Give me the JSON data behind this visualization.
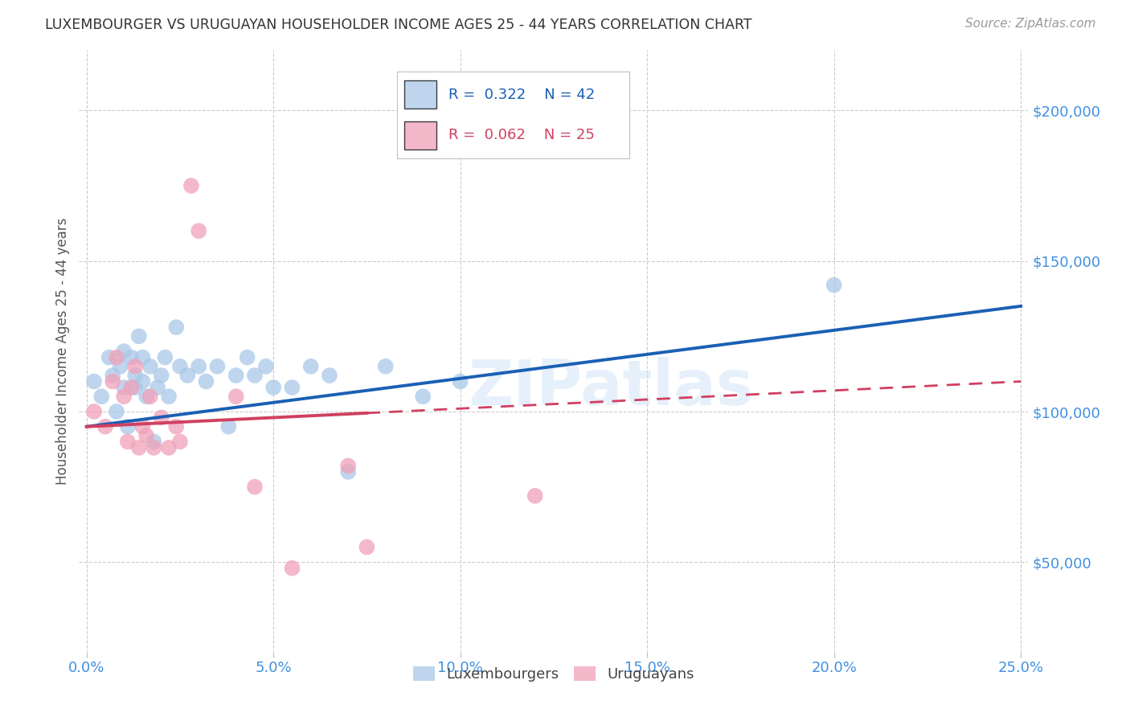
{
  "title": "LUXEMBOURGER VS URUGUAYAN HOUSEHOLDER INCOME AGES 25 - 44 YEARS CORRELATION CHART",
  "source": "Source: ZipAtlas.com",
  "ylabel": "Householder Income Ages 25 - 44 years",
  "xlabel_ticks": [
    "0.0%",
    "5.0%",
    "10.0%",
    "15.0%",
    "20.0%",
    "25.0%"
  ],
  "xlabel_vals": [
    0.0,
    0.05,
    0.1,
    0.15,
    0.2,
    0.25
  ],
  "ytick_labels": [
    "$50,000",
    "$100,000",
    "$150,000",
    "$200,000"
  ],
  "ytick_vals": [
    50000,
    100000,
    150000,
    200000
  ],
  "ylim": [
    20000,
    220000
  ],
  "xlim": [
    -0.002,
    0.252
  ],
  "blue_r": 0.322,
  "blue_n": 42,
  "pink_r": 0.062,
  "pink_n": 25,
  "blue_color": "#a8c8e8",
  "pink_color": "#f0a0b8",
  "blue_line_color": "#1a5fb4",
  "pink_line_color": "#d04060",
  "bg_color": "#ffffff",
  "grid_color": "#cccccc",
  "axis_label_color": "#4090e0",
  "title_color": "#333333",
  "watermark": "ZIPatlas",
  "blue_points_x": [
    0.002,
    0.004,
    0.006,
    0.007,
    0.008,
    0.009,
    0.01,
    0.01,
    0.011,
    0.012,
    0.013,
    0.013,
    0.014,
    0.015,
    0.015,
    0.016,
    0.017,
    0.018,
    0.019,
    0.02,
    0.021,
    0.022,
    0.024,
    0.025,
    0.027,
    0.03,
    0.032,
    0.035,
    0.038,
    0.04,
    0.043,
    0.045,
    0.048,
    0.05,
    0.055,
    0.06,
    0.065,
    0.07,
    0.08,
    0.09,
    0.1,
    0.2
  ],
  "blue_points_y": [
    110000,
    105000,
    118000,
    112000,
    100000,
    115000,
    108000,
    120000,
    95000,
    118000,
    112000,
    108000,
    125000,
    110000,
    118000,
    105000,
    115000,
    90000,
    108000,
    112000,
    118000,
    105000,
    128000,
    115000,
    112000,
    115000,
    110000,
    115000,
    95000,
    112000,
    118000,
    112000,
    115000,
    108000,
    108000,
    115000,
    112000,
    80000,
    115000,
    105000,
    110000,
    142000
  ],
  "pink_points_x": [
    0.002,
    0.005,
    0.007,
    0.008,
    0.01,
    0.011,
    0.012,
    0.013,
    0.014,
    0.015,
    0.016,
    0.017,
    0.018,
    0.02,
    0.022,
    0.024,
    0.025,
    0.028,
    0.03,
    0.04,
    0.045,
    0.055,
    0.07,
    0.075,
    0.12
  ],
  "pink_points_y": [
    100000,
    95000,
    110000,
    118000,
    105000,
    90000,
    108000,
    115000,
    88000,
    95000,
    92000,
    105000,
    88000,
    98000,
    88000,
    95000,
    90000,
    175000,
    160000,
    105000,
    75000,
    48000,
    82000,
    55000,
    72000
  ],
  "blue_line_x0": 0.0,
  "blue_line_y0": 95000,
  "blue_line_x1": 0.25,
  "blue_line_y1": 135000,
  "pink_line_x0": 0.0,
  "pink_line_y0": 95000,
  "pink_line_x_solid_end": 0.075,
  "pink_line_x1": 0.25,
  "pink_line_y1": 110000
}
